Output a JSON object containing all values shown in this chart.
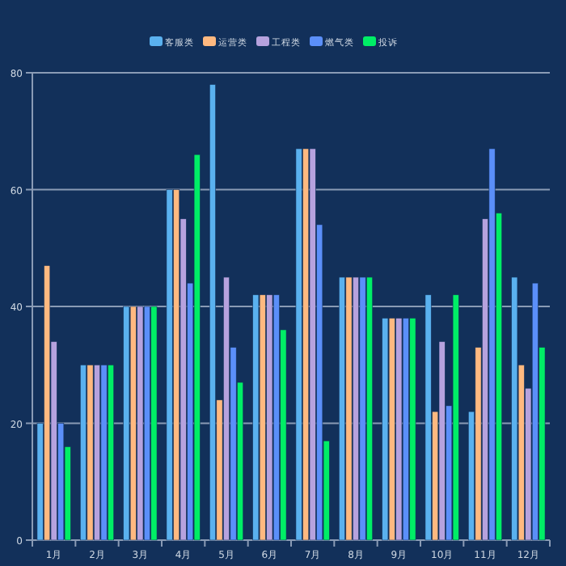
{
  "chart_data": {
    "type": "bar",
    "categories": [
      "1月",
      "2月",
      "3月",
      "4月",
      "5月",
      "6月",
      "7月",
      "8月",
      "9月",
      "10月",
      "11月",
      "12月"
    ],
    "series": [
      {
        "name": "客服类",
        "color": "#5ab1ef",
        "values": [
          20,
          30,
          40,
          60,
          78,
          42,
          67,
          45,
          38,
          42,
          22,
          45
        ]
      },
      {
        "name": "运营类",
        "color": "#ffb980",
        "values": [
          47,
          30,
          40,
          60,
          24,
          42,
          67,
          45,
          38,
          22,
          33,
          30
        ]
      },
      {
        "name": "工程类",
        "color": "#b6a2de",
        "values": [
          34,
          30,
          40,
          55,
          45,
          42,
          67,
          45,
          38,
          34,
          55,
          26
        ]
      },
      {
        "name": "燃气类",
        "color": "#5b8ff9",
        "values": [
          20,
          30,
          40,
          44,
          33,
          42,
          54,
          45,
          38,
          23,
          67,
          44
        ]
      },
      {
        "name": "投诉",
        "color": "#00ee66",
        "values": [
          16,
          30,
          40,
          66,
          27,
          36,
          17,
          45,
          38,
          42,
          56,
          33
        ]
      }
    ],
    "ylim": [
      0,
      80
    ],
    "yticks": [
      0,
      20,
      40,
      60,
      80
    ],
    "grid": "y",
    "legend": "top"
  }
}
